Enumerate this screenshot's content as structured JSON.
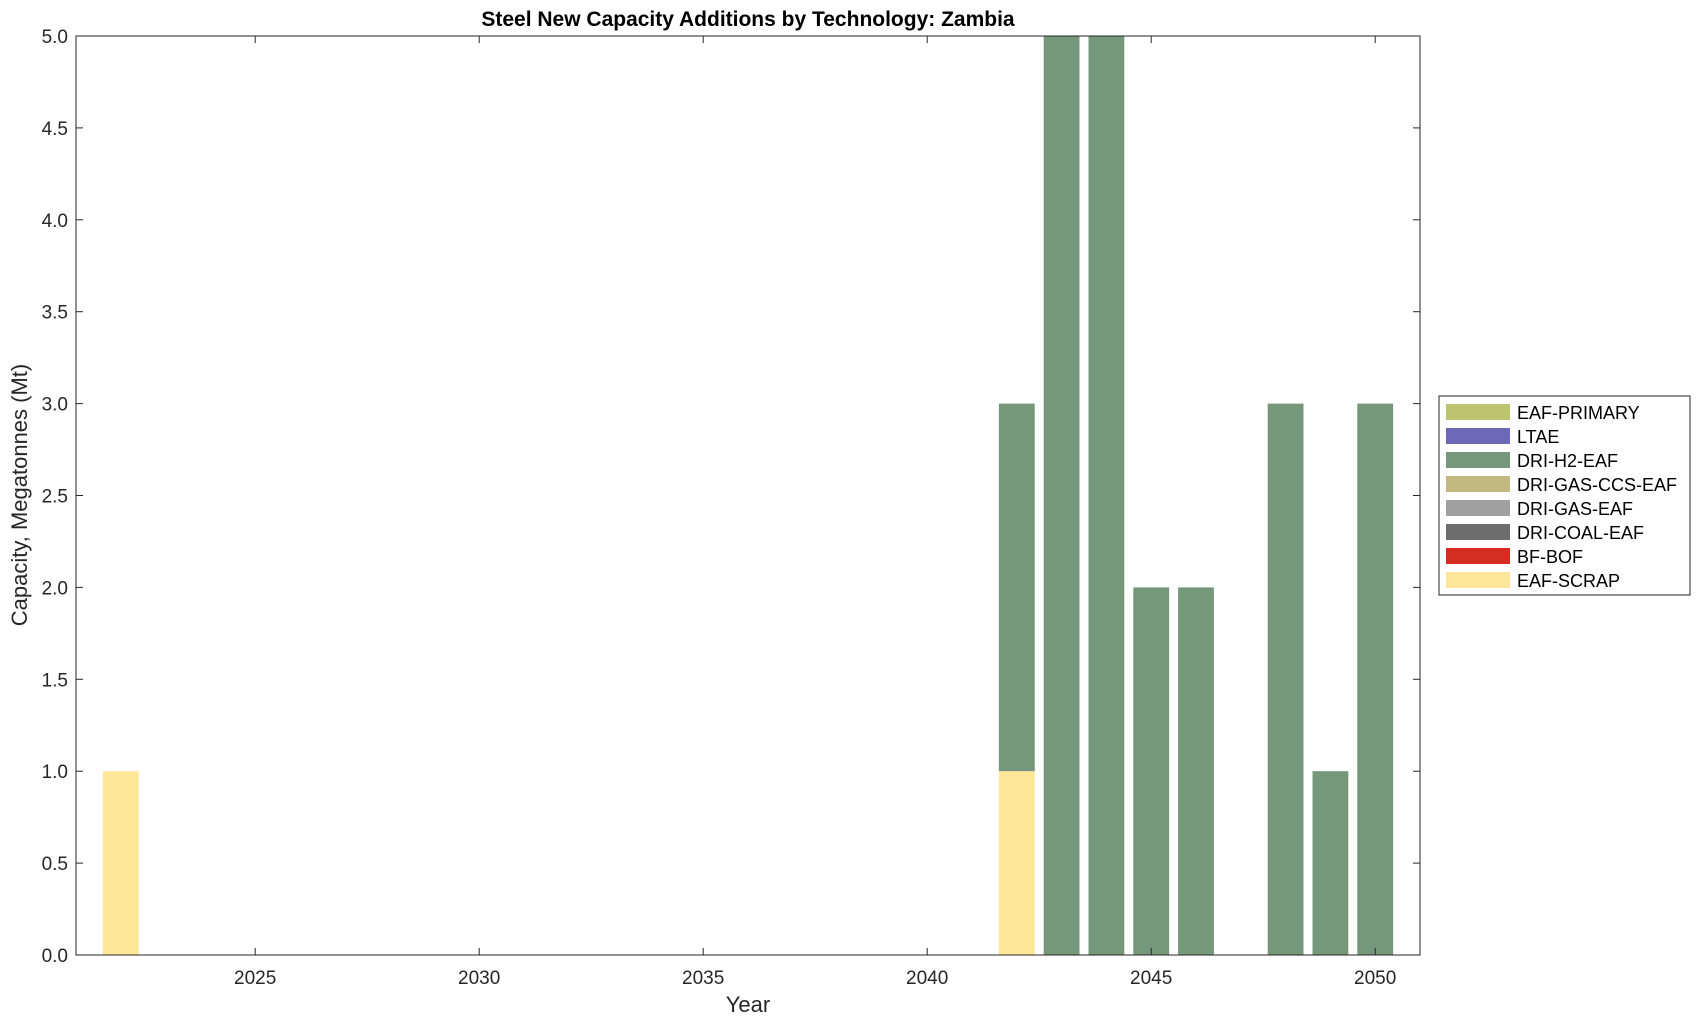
{
  "chart_data": {
    "type": "bar",
    "stacked": true,
    "title": "Steel New Capacity Additions by Technology: Zambia",
    "xlabel": "Year",
    "ylabel": "Capacity, Megatonnes (Mt)",
    "xlim": [
      2021,
      2051
    ],
    "ylim": [
      0,
      5
    ],
    "xticks": [
      2025,
      2030,
      2035,
      2040,
      2045,
      2050
    ],
    "yticks": [
      0.0,
      0.5,
      1.0,
      1.5,
      2.0,
      2.5,
      3.0,
      3.5,
      4.0,
      4.5,
      5.0
    ],
    "ytick_labels": [
      "0.0",
      "0.5",
      "1.0",
      "1.5",
      "2.0",
      "2.5",
      "3.0",
      "3.5",
      "4.0",
      "4.5",
      "5.0"
    ],
    "grid": false,
    "legend_position": "right-center",
    "x": [
      2022,
      2023,
      2024,
      2025,
      2026,
      2027,
      2028,
      2029,
      2030,
      2031,
      2032,
      2033,
      2034,
      2035,
      2036,
      2037,
      2038,
      2039,
      2040,
      2041,
      2042,
      2043,
      2044,
      2045,
      2046,
      2047,
      2048,
      2049,
      2050
    ],
    "series": [
      {
        "name": "EAF-SCRAP",
        "color": "#FFE699",
        "values": [
          1,
          0,
          0,
          0,
          0,
          0,
          0,
          0,
          0,
          0,
          0,
          0,
          0,
          0,
          0,
          0,
          0,
          0,
          0,
          0,
          1,
          0,
          0,
          0,
          0,
          0,
          0,
          0,
          0
        ]
      },
      {
        "name": "BF-BOF",
        "color": "#D62D23",
        "values": [
          0,
          0,
          0,
          0,
          0,
          0,
          0,
          0,
          0,
          0,
          0,
          0,
          0,
          0,
          0,
          0,
          0,
          0,
          0,
          0,
          0,
          0,
          0,
          0,
          0,
          0,
          0,
          0,
          0
        ]
      },
      {
        "name": "DRI-COAL-EAF",
        "color": "#6D6D6D",
        "values": [
          0,
          0,
          0,
          0,
          0,
          0,
          0,
          0,
          0,
          0,
          0,
          0,
          0,
          0,
          0,
          0,
          0,
          0,
          0,
          0,
          0,
          0,
          0,
          0,
          0,
          0,
          0,
          0,
          0
        ]
      },
      {
        "name": "DRI-GAS-EAF",
        "color": "#A0A0A0",
        "values": [
          0,
          0,
          0,
          0,
          0,
          0,
          0,
          0,
          0,
          0,
          0,
          0,
          0,
          0,
          0,
          0,
          0,
          0,
          0,
          0,
          0,
          0,
          0,
          0,
          0,
          0,
          0,
          0,
          0
        ]
      },
      {
        "name": "DRI-GAS-CCS-EAF",
        "color": "#C2B880",
        "values": [
          0,
          0,
          0,
          0,
          0,
          0,
          0,
          0,
          0,
          0,
          0,
          0,
          0,
          0,
          0,
          0,
          0,
          0,
          0,
          0,
          0,
          0,
          0,
          0,
          0,
          0,
          0,
          0,
          0
        ]
      },
      {
        "name": "DRI-H2-EAF",
        "color": "#76987A",
        "values": [
          0,
          0,
          0,
          0,
          0,
          0,
          0,
          0,
          0,
          0,
          0,
          0,
          0,
          0,
          0,
          0,
          0,
          0,
          0,
          0,
          2,
          5,
          5,
          2,
          2,
          0,
          3,
          1,
          3
        ]
      },
      {
        "name": "LTAE",
        "color": "#6E68B8",
        "values": [
          0,
          0,
          0,
          0,
          0,
          0,
          0,
          0,
          0,
          0,
          0,
          0,
          0,
          0,
          0,
          0,
          0,
          0,
          0,
          0,
          0,
          0,
          0,
          0,
          0,
          0,
          0,
          0,
          0
        ]
      },
      {
        "name": "EAF-PRIMARY",
        "color": "#BCC46E",
        "values": [
          0,
          0,
          0,
          0,
          0,
          0,
          0,
          0,
          0,
          0,
          0,
          0,
          0,
          0,
          0,
          0,
          0,
          0,
          0,
          0,
          0,
          0,
          0,
          0,
          0,
          0,
          0,
          0,
          0
        ]
      }
    ],
    "legend_order": [
      "EAF-PRIMARY",
      "LTAE",
      "DRI-H2-EAF",
      "DRI-GAS-CCS-EAF",
      "DRI-GAS-EAF",
      "DRI-COAL-EAF",
      "BF-BOF",
      "EAF-SCRAP"
    ]
  }
}
